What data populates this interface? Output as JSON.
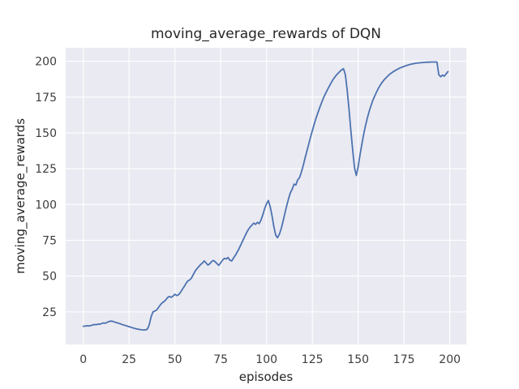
{
  "figure": {
    "title": "moving_average_rewards of DQN",
    "xlabel": "episodes",
    "ylabel": "moving_average_rewards"
  },
  "chart_data": {
    "type": "line",
    "title": "moving_average_rewards of DQN",
    "xlabel": "episodes",
    "ylabel": "moving_average_rewards",
    "legend": "none",
    "grid": true,
    "axes_bg_color": "#eaeaf2",
    "grid_color": "#ffffff",
    "line_color": "#4c72b0",
    "xlim": [
      -9.6,
      209.0
    ],
    "ylim": [
      2.3,
      209.4
    ],
    "x_ticks": [
      0,
      25,
      50,
      75,
      100,
      125,
      150,
      175,
      200
    ],
    "y_ticks": [
      25,
      50,
      75,
      100,
      125,
      150,
      175,
      200
    ],
    "series": [
      {
        "name": "moving_average_rewards",
        "x_start": 0,
        "x_step": 1,
        "values": [
          15.0,
          15.1,
          15.3,
          15.2,
          15.5,
          15.8,
          16.2,
          16.0,
          16.5,
          16.4,
          16.9,
          17.3,
          17.1,
          17.7,
          18.3,
          18.6,
          18.4,
          18.0,
          17.6,
          17.2,
          16.8,
          16.3,
          15.9,
          15.5,
          15.1,
          14.7,
          14.3,
          13.9,
          13.5,
          13.2,
          12.9,
          12.7,
          12.5,
          12.4,
          12.5,
          13.0,
          16.0,
          21.5,
          25.0,
          25.6,
          26.3,
          28.0,
          29.8,
          31.3,
          32.2,
          33.4,
          35.0,
          35.8,
          35.2,
          36.1,
          37.3,
          36.4,
          37.0,
          38.6,
          40.6,
          42.6,
          44.7,
          46.6,
          47.3,
          48.6,
          51.0,
          53.4,
          55.1,
          56.6,
          58.1,
          59.1,
          60.6,
          59.2,
          57.7,
          58.6,
          60.1,
          61.0,
          60.0,
          58.6,
          57.5,
          59.4,
          61.1,
          62.4,
          62.0,
          63.0,
          61.1,
          60.6,
          62.6,
          64.6,
          66.8,
          69.2,
          71.9,
          74.6,
          77.4,
          80.0,
          82.4,
          84.1,
          85.6,
          87.0,
          86.1,
          87.6,
          86.6,
          89.2,
          93.0,
          97.2,
          100.6,
          102.8,
          98.5,
          92.0,
          84.5,
          78.6,
          76.8,
          79.2,
          83.2,
          88.2,
          93.8,
          99.0,
          104.0,
          108.2,
          110.6,
          114.2,
          113.6,
          117.2,
          118.8,
          122.5,
          127.2,
          132.2,
          137.2,
          142.2,
          147.0,
          151.6,
          156.0,
          160.2,
          164.0,
          167.6,
          171.0,
          174.2,
          177.0,
          179.6,
          182.0,
          184.4,
          186.6,
          188.5,
          190.2,
          191.6,
          192.9,
          194.0,
          194.8,
          190.5,
          180.0,
          166.5,
          152.0,
          138.0,
          125.5,
          120.3,
          126.5,
          134.5,
          142.0,
          148.8,
          155.0,
          160.4,
          165.0,
          169.0,
          172.6,
          175.7,
          178.5,
          181.0,
          183.2,
          185.1,
          186.8,
          188.2,
          189.5,
          190.7,
          191.7,
          192.6,
          193.4,
          194.1,
          194.8,
          195.4,
          195.9,
          196.4,
          196.9,
          197.3,
          197.7,
          198.0,
          198.3,
          198.5,
          198.7,
          198.9,
          199.0,
          199.1,
          199.2,
          199.3,
          199.4,
          199.4,
          199.5,
          199.5,
          199.5,
          199.5,
          190.6,
          189.2,
          190.4,
          189.6,
          191.2,
          192.8
        ]
      }
    ]
  }
}
